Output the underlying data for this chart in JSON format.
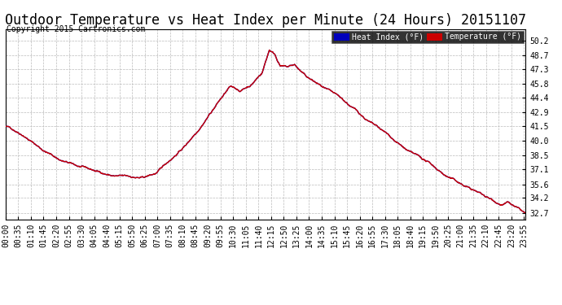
{
  "title": "Outdoor Temperature vs Heat Index per Minute (24 Hours) 20151107",
  "copyright": "Copyright 2015 Cartronics.com",
  "legend_heat_index": "Heat Index (°F)",
  "legend_temperature": "Temperature (°F)",
  "heat_index_color": "#0000bb",
  "heat_index_bg": "#0000bb",
  "temperature_color": "#cc0000",
  "temperature_bg": "#cc0000",
  "legend_text_color": "#ffffff",
  "ylim": [
    32.0,
    51.4
  ],
  "yticks": [
    32.7,
    34.2,
    35.6,
    37.1,
    38.5,
    40.0,
    41.5,
    42.9,
    44.4,
    45.8,
    47.3,
    48.7,
    50.2
  ],
  "background_color": "#ffffff",
  "grid_color": "#bbbbbb",
  "line_width": 1.0,
  "title_fontsize": 12,
  "copyright_fontsize": 7,
  "tick_fontsize": 7,
  "num_minutes": 1440,
  "x_tick_interval": 35,
  "keypoints_t": [
    0,
    50,
    100,
    150,
    200,
    250,
    300,
    380,
    420,
    460,
    500,
    530,
    560,
    590,
    620,
    650,
    680,
    710,
    730,
    745,
    760,
    780,
    800,
    830,
    870,
    920,
    970,
    1020,
    1070,
    1120,
    1170,
    1220,
    1270,
    1310,
    1340,
    1370,
    1390,
    1410,
    1439
  ],
  "keypoints_v": [
    41.5,
    40.8,
    39.5,
    38.5,
    37.8,
    37.2,
    36.8,
    36.5,
    37.0,
    38.5,
    40.0,
    41.5,
    43.2,
    44.8,
    46.2,
    45.8,
    46.5,
    47.8,
    50.2,
    49.8,
    48.7,
    48.5,
    48.7,
    47.5,
    46.5,
    45.0,
    43.5,
    42.0,
    40.5,
    39.0,
    37.8,
    36.5,
    35.5,
    34.8,
    34.2,
    33.8,
    34.0,
    33.5,
    32.7
  ]
}
